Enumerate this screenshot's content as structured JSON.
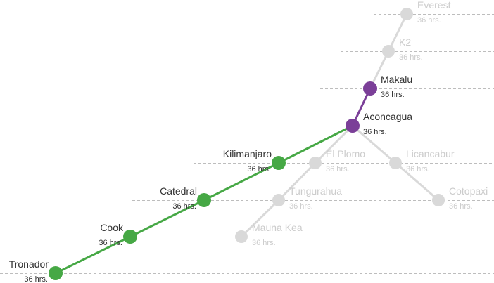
{
  "colors": {
    "achieved": "#46a845",
    "current": "#7b3f98",
    "locked": "#d9d9d9",
    "dashed": "#bdbdbd",
    "text_active": "#333333",
    "text_locked": "#cccccc"
  },
  "nodes": [
    {
      "id": "tronador",
      "name": "Tronador",
      "duration": "36 hrs.",
      "status": "achieved",
      "label_side": "left"
    },
    {
      "id": "cook",
      "name": "Cook",
      "duration": "36 hrs.",
      "status": "achieved",
      "label_side": "left"
    },
    {
      "id": "catedral",
      "name": "Catedral",
      "duration": "36 hrs.",
      "status": "achieved",
      "label_side": "left"
    },
    {
      "id": "kilimanjaro",
      "name": "Kilimanjaro",
      "duration": "36 hrs.",
      "status": "achieved",
      "label_side": "left"
    },
    {
      "id": "aconcagua",
      "name": "Aconcagua",
      "duration": "36 hrs.",
      "status": "current",
      "label_side": "right"
    },
    {
      "id": "makalu",
      "name": "Makalu",
      "duration": "36 hrs.",
      "status": "current",
      "label_side": "right"
    },
    {
      "id": "k2",
      "name": "K2",
      "duration": "36 hrs.",
      "status": "locked",
      "label_side": "right"
    },
    {
      "id": "everest",
      "name": "Everest",
      "duration": "36 hrs.",
      "status": "locked",
      "label_side": "right"
    },
    {
      "id": "el-plomo",
      "name": "El Plomo",
      "duration": "36 hrs.",
      "status": "locked",
      "label_side": "right"
    },
    {
      "id": "tungurahua",
      "name": "Tungurahua",
      "duration": "36 hrs.",
      "status": "locked",
      "label_side": "right"
    },
    {
      "id": "mauna-kea",
      "name": "Mauna Kea",
      "duration": "36 hrs.",
      "status": "locked",
      "label_side": "right"
    },
    {
      "id": "licancabur",
      "name": "Licancabur",
      "duration": "36 hrs.",
      "status": "locked",
      "label_side": "right"
    },
    {
      "id": "cotopaxi",
      "name": "Cotopaxi",
      "duration": "36 hrs.",
      "status": "locked",
      "label_side": "right"
    }
  ],
  "edges": [
    {
      "from": "tronador",
      "to": "cook",
      "status": "achieved"
    },
    {
      "from": "cook",
      "to": "catedral",
      "status": "achieved"
    },
    {
      "from": "catedral",
      "to": "kilimanjaro",
      "status": "achieved"
    },
    {
      "from": "kilimanjaro",
      "to": "aconcagua",
      "status": "achieved"
    },
    {
      "from": "aconcagua",
      "to": "makalu",
      "status": "current"
    },
    {
      "from": "makalu",
      "to": "k2",
      "status": "locked"
    },
    {
      "from": "k2",
      "to": "everest",
      "status": "locked"
    },
    {
      "from": "aconcagua",
      "to": "el-plomo",
      "status": "locked"
    },
    {
      "from": "el-plomo",
      "to": "tungurahua",
      "status": "locked"
    },
    {
      "from": "tungurahua",
      "to": "mauna-kea",
      "status": "locked"
    },
    {
      "from": "aconcagua",
      "to": "licancabur",
      "status": "locked"
    },
    {
      "from": "licancabur",
      "to": "cotopaxi",
      "status": "locked"
    }
  ]
}
